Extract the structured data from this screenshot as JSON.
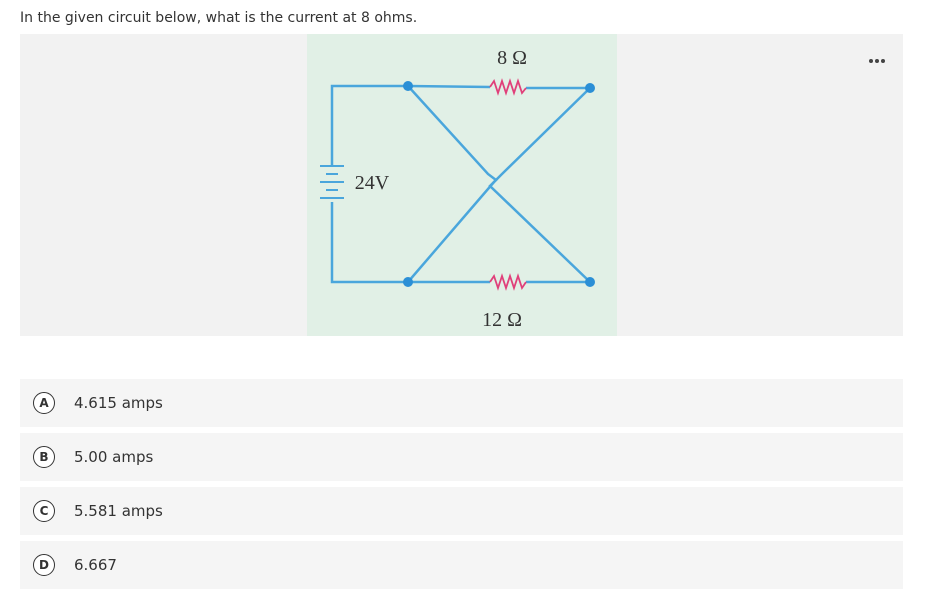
{
  "question": "In the given circuit below, what is the current at 8 ohms.",
  "figure": {
    "top_resistor": "8 Ω",
    "battery": "24V",
    "bottom_resistor": "12 Ω"
  },
  "options": [
    {
      "letter": "A",
      "text": "4.615 amps"
    },
    {
      "letter": "B",
      "text": "5.00 amps"
    },
    {
      "letter": "C",
      "text": "5.581 amps"
    },
    {
      "letter": "D",
      "text": "6.667"
    }
  ]
}
